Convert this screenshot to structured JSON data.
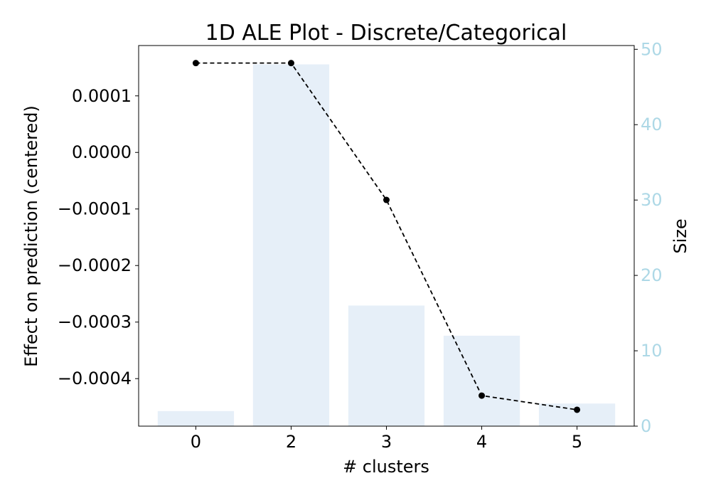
{
  "chart_data": {
    "type": "bar+line",
    "title": "1D ALE Plot - Discrete/Categorical",
    "xlabel": "# clusters",
    "ylabel_left": "Effect on prediction (centered)",
    "ylabel_right": "Size",
    "categories": [
      "0",
      "2",
      "3",
      "4",
      "5"
    ],
    "line_series": {
      "values": [
        0.000158,
        0.000158,
        -8.4e-05,
        -0.00043,
        -0.000455
      ],
      "style": "dashed",
      "marker": "circle"
    },
    "bar_series": {
      "values": [
        2,
        48,
        16,
        12,
        3
      ]
    },
    "left_ticks": [
      {
        "value": 0.0001,
        "label": "0.0001"
      },
      {
        "value": 0.0,
        "label": "0.0000"
      },
      {
        "value": -0.0001,
        "label": "−0.0001"
      },
      {
        "value": -0.0002,
        "label": "−0.0002"
      },
      {
        "value": -0.0003,
        "label": "−0.0003"
      },
      {
        "value": -0.0004,
        "label": "−0.0004"
      }
    ],
    "right_ticks": [
      0,
      10,
      20,
      30,
      40,
      50
    ],
    "ylim_left": [
      -0.000484,
      0.000189
    ],
    "ylim_right": [
      0,
      50.5
    ],
    "grid": false,
    "colors": {
      "bar": "#e6eff8",
      "line": "#000000",
      "right_axis": "#add8e6"
    }
  }
}
